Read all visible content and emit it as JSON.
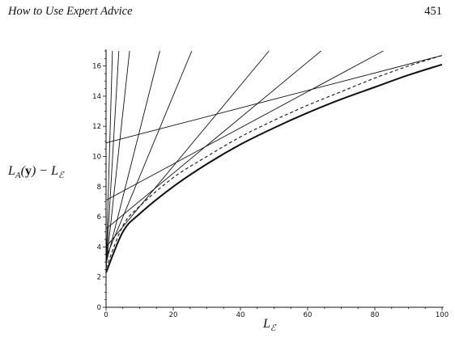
{
  "page": {
    "running_head": "How to Use Expert Advice",
    "page_number": "451"
  },
  "chart_data": {
    "type": "line",
    "title": "",
    "xlabel": "Lℰ",
    "ylabel": "L_A(y) − Lℰ",
    "xlim": [
      0,
      100
    ],
    "ylim": [
      0,
      17
    ],
    "x_ticks": [
      0,
      20,
      40,
      60,
      80,
      100
    ],
    "y_ticks": [
      0,
      2,
      4,
      6,
      8,
      10,
      12,
      14,
      16
    ],
    "grid": false,
    "legend": "none",
    "series": [
      {
        "style": "thick-solid",
        "x": [
          0,
          5,
          10,
          20,
          30,
          40,
          50,
          60,
          70,
          80,
          90,
          100
        ],
        "y": [
          2.3,
          5.0,
          6.2,
          8.0,
          9.5,
          10.8,
          11.9,
          12.9,
          13.8,
          14.6,
          15.4,
          16.1
        ]
      },
      {
        "style": "dashed",
        "x": [
          0,
          5,
          10,
          20,
          30,
          40,
          50,
          60,
          70,
          80,
          90,
          100
        ],
        "y": [
          2.6,
          5.4,
          6.7,
          8.6,
          10.0,
          11.3,
          12.4,
          13.4,
          14.3,
          15.2,
          16.0,
          16.7
        ]
      },
      {
        "style": "thin-solid",
        "x": [
          0,
          100
        ],
        "y": [
          10.9,
          16.7
        ]
      },
      {
        "style": "thin-solid",
        "x": [
          0,
          82.5
        ],
        "y": [
          7.1,
          17
        ]
      },
      {
        "style": "thin-solid",
        "x": [
          0,
          64
        ],
        "y": [
          5.2,
          17
        ]
      },
      {
        "style": "thin-solid",
        "x": [
          0,
          48.5
        ],
        "y": [
          4.0,
          17
        ]
      },
      {
        "style": "thin-solid",
        "x": [
          0,
          25.5
        ],
        "y": [
          3.3,
          17
        ]
      },
      {
        "style": "thin-solid",
        "x": [
          0,
          16
        ],
        "y": [
          2.9,
          17
        ]
      },
      {
        "style": "thin-solid",
        "x": [
          0,
          7
        ],
        "y": [
          2.7,
          17
        ]
      },
      {
        "style": "thin-solid",
        "x": [
          0,
          3.8
        ],
        "y": [
          2.6,
          17
        ]
      },
      {
        "style": "thin-solid",
        "x": [
          0,
          1.9
        ],
        "y": [
          2.5,
          17
        ]
      }
    ]
  }
}
